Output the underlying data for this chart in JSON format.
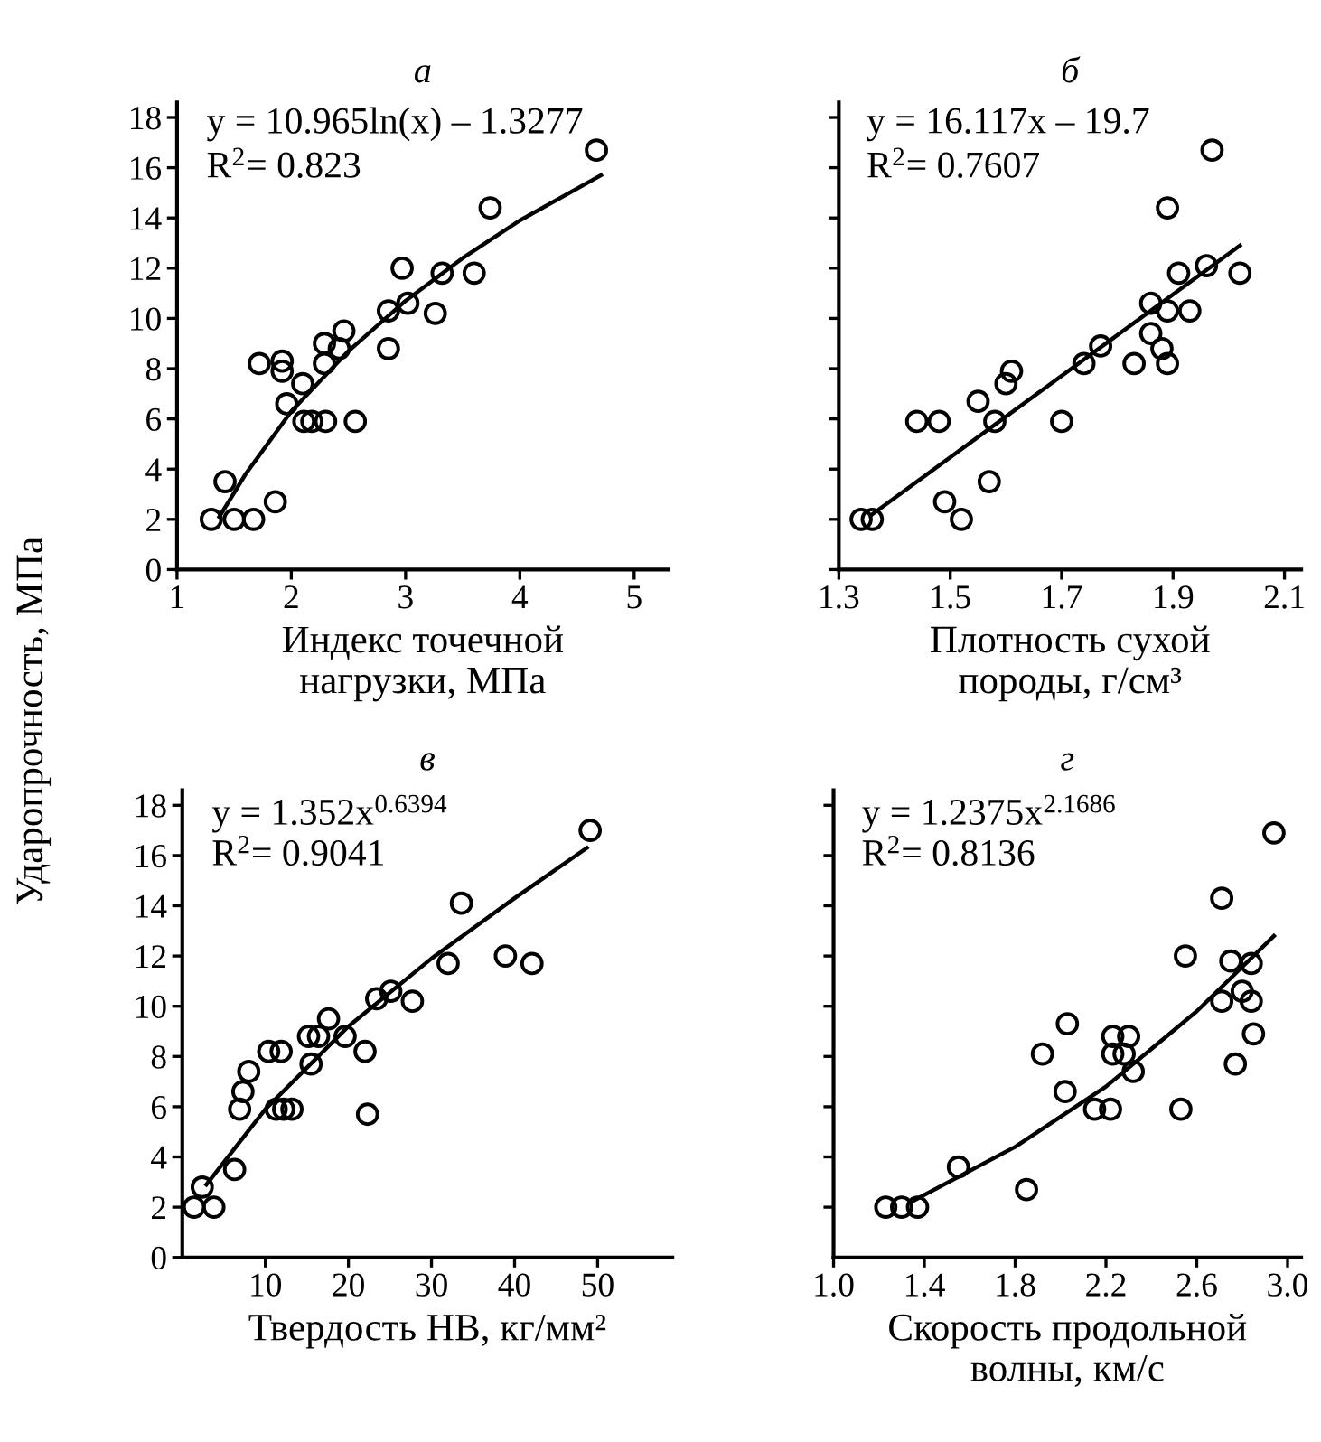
{
  "chart_data": [
    {
      "type": "scatter",
      "title": "а",
      "ylabel": "Ударопрочность, МПа",
      "xlabel": "Индекс точечной\nнагрузки, МПа",
      "xlim": [
        1,
        5.3
      ],
      "xticks": [
        1,
        2,
        3,
        4,
        5
      ],
      "ylim": [
        0,
        18.6
      ],
      "yticks": [
        0,
        2,
        4,
        6,
        8,
        10,
        12,
        14,
        16,
        18
      ],
      "annotations": [
        "y = 10.965ln(x) – 1.3277",
        "R$^{2}$= 0.823"
      ],
      "series": [
        {
          "marker": "circle",
          "color": "#000000",
          "x": [
            1.3,
            1.42,
            1.5,
            1.67,
            1.72,
            1.92,
            1.92,
            1.86,
            1.96,
            2.1,
            2.11,
            2.18,
            2.3,
            2.29,
            2.29,
            2.42,
            2.46,
            2.56,
            2.85,
            2.85,
            2.97,
            3.02,
            3.26,
            3.32,
            3.6,
            3.74,
            4.67
          ],
          "values": [
            2.0,
            3.5,
            2.0,
            2.0,
            8.2,
            8.3,
            7.9,
            2.7,
            6.6,
            7.4,
            5.9,
            5.9,
            5.9,
            8.2,
            9.0,
            8.8,
            9.5,
            5.9,
            8.8,
            10.3,
            12.0,
            10.6,
            10.2,
            11.8,
            11.8,
            14.4,
            16.7
          ]
        },
        {
          "type": "line",
          "color": "#000000",
          "x": [
            1.37,
            1.6,
            2,
            2.5,
            3,
            3.5,
            4,
            4.71
          ],
          "values": [
            2.1,
            3.8,
            6.3,
            8.7,
            10.7,
            12.4,
            13.9,
            15.7
          ]
        }
      ]
    },
    {
      "type": "scatter",
      "title": "б",
      "xlabel": "Плотность сухой\nпороды, г/см³",
      "xlim": [
        1.3,
        2.13
      ],
      "xticks": [
        1.3,
        1.5,
        1.7,
        1.9,
        2.1
      ],
      "ylim": [
        0,
        18.6
      ],
      "yticks": [
        {
          "value": 0,
          "label": null
        },
        {
          "value": 2,
          "label": null
        },
        {
          "value": 4,
          "label": null
        },
        {
          "value": 6,
          "label": null
        },
        {
          "value": 8,
          "label": null
        },
        {
          "value": 10,
          "label": null
        },
        {
          "value": 12,
          "label": null
        },
        {
          "value": 14,
          "label": null
        },
        {
          "value": 16,
          "label": null
        },
        {
          "value": 18,
          "label": null
        }
      ],
      "tick_labels": "x",
      "annotations": [
        "y = 16.117x – 19.7",
        "R$^{2}$= 0.7607"
      ],
      "series": [
        {
          "marker": "circle",
          "color": "#000000",
          "x": [
            1.34,
            1.36,
            1.44,
            1.48,
            1.49,
            1.52,
            1.55,
            1.57,
            1.58,
            1.6,
            1.61,
            1.7,
            1.74,
            1.77,
            1.83,
            1.86,
            1.86,
            1.88,
            1.89,
            1.89,
            1.89,
            1.91,
            1.93,
            1.96,
            1.97,
            2.02
          ],
          "values": [
            2.0,
            2.0,
            5.9,
            5.9,
            2.7,
            2.0,
            6.7,
            3.5,
            5.9,
            7.4,
            7.9,
            5.9,
            8.2,
            8.9,
            8.2,
            9.4,
            10.6,
            8.8,
            8.2,
            10.3,
            14.4,
            11.8,
            10.3,
            12.1,
            16.7,
            11.8
          ]
        },
        {
          "type": "line",
          "color": "#000000",
          "x": [
            1.36,
            2.02
          ],
          "values": [
            2.2,
            12.9
          ]
        }
      ]
    },
    {
      "type": "scatter",
      "title": "в",
      "xlabel": "Твердость НВ, кг/мм²",
      "xlim": [
        0,
        59
      ],
      "xticks": [
        10,
        20,
        30,
        40,
        50
      ],
      "ylim": [
        0,
        18.6
      ],
      "yticks": [
        0,
        2,
        4,
        6,
        8,
        10,
        12,
        14,
        16,
        18
      ],
      "annotations": [
        "y = 1.352x$^{0.6394}$",
        "R$^{2}$= 0.9041"
      ],
      "series": [
        {
          "marker": "circle",
          "color": "#000000",
          "x": [
            1.4,
            2.4,
            3.8,
            6.3,
            6.9,
            7.3,
            8.0,
            10.4,
            11.9,
            11.3,
            12.2,
            13.2,
            15.2,
            15.5,
            16.4,
            17.6,
            19.6,
            22.0,
            22.3,
            23.4,
            25.1,
            27.7,
            32.0,
            33.6,
            38.9,
            42.1,
            49.1
          ],
          "values": [
            2.0,
            2.8,
            2.0,
            3.5,
            5.9,
            6.6,
            7.4,
            8.2,
            8.2,
            5.9,
            5.9,
            5.9,
            8.8,
            7.7,
            8.8,
            9.5,
            8.8,
            8.2,
            5.7,
            10.3,
            10.6,
            10.2,
            11.7,
            14.1,
            12.0,
            11.7,
            17.0
          ]
        },
        {
          "type": "line",
          "color": "#000000",
          "x": [
            2.9,
            10,
            20,
            30,
            40,
            48.7
          ],
          "values": [
            2.9,
            5.9,
            9.2,
            11.9,
            14.3,
            16.3
          ]
        }
      ]
    },
    {
      "type": "scatter",
      "title": "г",
      "xlabel": "Скорость продольной\nволны, км/с",
      "xlim": [
        1.0,
        3.06
      ],
      "xticks": [
        {
          "value": 1.0,
          "label": "1.0"
        },
        1.4,
        1.8,
        2.2,
        2.6,
        {
          "value": 3.0,
          "label": "3.0"
        }
      ],
      "ylim": [
        0,
        18.6
      ],
      "yticks": [
        {
          "value": 2,
          "label": null
        },
        {
          "value": 4,
          "label": null
        },
        {
          "value": 6,
          "label": null
        },
        {
          "value": 8,
          "label": null
        },
        {
          "value": 10,
          "label": null
        },
        {
          "value": 12,
          "label": null
        },
        {
          "value": 14,
          "label": null
        },
        {
          "value": 16,
          "label": null
        },
        {
          "value": 18,
          "label": null
        }
      ],
      "tick_labels": "x",
      "annotations": [
        "y = 1.2375x$^{2.1686}$",
        "R$^{2}$= 0.8136"
      ],
      "series": [
        {
          "marker": "circle",
          "color": "#000000",
          "x": [
            1.23,
            1.3,
            1.37,
            1.55,
            1.85,
            1.92,
            2.02,
            2.03,
            2.15,
            2.22,
            2.23,
            2.23,
            2.28,
            2.3,
            2.32,
            2.53,
            2.55,
            2.71,
            2.71,
            2.75,
            2.8,
            2.77,
            2.84,
            2.84,
            2.85,
            2.94
          ],
          "values": [
            2.0,
            2.0,
            2.0,
            3.6,
            2.7,
            8.1,
            6.6,
            9.3,
            5.9,
            5.9,
            8.8,
            8.1,
            8.1,
            8.8,
            7.4,
            5.9,
            12.0,
            10.2,
            14.3,
            11.8,
            10.6,
            7.7,
            11.7,
            10.2,
            8.9,
            16.9
          ]
        },
        {
          "type": "line",
          "color": "#000000",
          "x": [
            1.34,
            1.8,
            2.2,
            2.6,
            2.94
          ],
          "values": [
            2.2,
            4.4,
            6.8,
            9.8,
            12.8
          ]
        }
      ]
    }
  ]
}
